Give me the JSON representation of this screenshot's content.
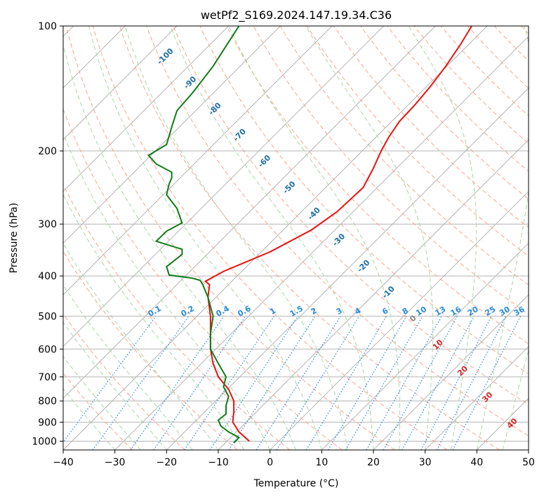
{
  "chart_data": {
    "type": "line",
    "title": "wetPf2_S169.2024.147.19.34.C36",
    "xlabel": "Temperature (°C)",
    "ylabel": "Pressure (hPa)",
    "xlim": [
      -40,
      50
    ],
    "ylim": [
      1050,
      100
    ],
    "y_scale": "log",
    "grid": true,
    "x_ticks": [
      -40,
      -30,
      -20,
      -10,
      0,
      10,
      20,
      30,
      40,
      50
    ],
    "y_ticks": [
      1000,
      900,
      800,
      700,
      600,
      500,
      400,
      300,
      200,
      100
    ],
    "x_tick_labels": [
      "−40",
      "−30",
      "−20",
      "−10",
      "0",
      "10",
      "20",
      "30",
      "40",
      "50"
    ],
    "y_tick_labels": [
      "1000",
      "900",
      "800",
      "700",
      "600",
      "500",
      "400",
      "300",
      "200",
      "100"
    ],
    "series": [
      {
        "color": "#e8130f",
        "points": [
          [
            -4,
            1000
          ],
          [
            -6,
            950
          ],
          [
            -7.2,
            900
          ],
          [
            -7,
            850
          ],
          [
            -7,
            800
          ],
          [
            -8,
            750
          ],
          [
            -10,
            700
          ],
          [
            -11,
            650
          ],
          [
            -11.5,
            600
          ],
          [
            -11.5,
            550
          ],
          [
            -11.5,
            500
          ],
          [
            -12,
            450
          ],
          [
            -11.7,
            420
          ],
          [
            -12.5,
            412
          ],
          [
            -9,
            390
          ],
          [
            0,
            350
          ],
          [
            8,
            310
          ],
          [
            13,
            280
          ],
          [
            18,
            245
          ],
          [
            20,
            220
          ],
          [
            21.5,
            200
          ],
          [
            23,
            185
          ],
          [
            25,
            170
          ],
          [
            28,
            155
          ],
          [
            31,
            140
          ],
          [
            34,
            125
          ],
          [
            37,
            110
          ],
          [
            39,
            100
          ]
        ]
      },
      {
        "color": "#0f7b17",
        "points": [
          [
            -7,
            1010
          ],
          [
            -6,
            980
          ],
          [
            -8,
            950
          ],
          [
            -9.5,
            920
          ],
          [
            -10,
            890
          ],
          [
            -8.5,
            860
          ],
          [
            -8.5,
            820
          ],
          [
            -8,
            780
          ],
          [
            -9,
            740
          ],
          [
            -8.5,
            700
          ],
          [
            -10,
            650
          ],
          [
            -11.5,
            600
          ],
          [
            -11.5,
            550
          ],
          [
            -11,
            500
          ],
          [
            -12,
            450
          ],
          [
            -13,
            420
          ],
          [
            -13.5,
            410
          ],
          [
            -15,
            405
          ],
          [
            -19.5,
            398
          ],
          [
            -20,
            380
          ],
          [
            -17,
            355
          ],
          [
            -17,
            345
          ],
          [
            -22,
            330
          ],
          [
            -20,
            312
          ],
          [
            -17,
            298
          ],
          [
            -18,
            275
          ],
          [
            -20,
            255
          ],
          [
            -19.5,
            240
          ],
          [
            -19,
            232
          ],
          [
            -19,
            225
          ],
          [
            -22,
            215
          ],
          [
            -23.5,
            205
          ],
          [
            -20,
            193
          ],
          [
            -19,
            175
          ],
          [
            -18,
            160
          ],
          [
            -15,
            145
          ],
          [
            -11,
            125
          ],
          [
            -6,
            100
          ]
        ]
      }
    ],
    "dry_adiabat_labels": [
      "-100",
      "-90",
      "-80",
      "-70",
      "-60",
      "-50",
      "-40",
      "-30",
      "-20",
      "-10",
      "0",
      "10",
      "20",
      "30",
      "40"
    ],
    "mixing_ratio_labels": [
      "0.1",
      "0.2",
      "0.4",
      "0.6",
      "1",
      "1.5",
      "2",
      "3",
      "4",
      "6",
      "8",
      "10",
      "13",
      "16",
      "20",
      "25",
      "30",
      "36"
    ],
    "mixing_ratio_values": [
      0.1,
      0.2,
      0.4,
      0.6,
      1,
      1.5,
      2,
      3,
      4,
      6,
      8,
      10,
      13,
      16,
      20,
      25,
      30,
      36
    ]
  },
  "colors": {
    "isotherm": "#b4b4b4",
    "isobar": "#b4b4b4",
    "dry_adiabat": "#f7a68c",
    "moist_adiabat": "#a9d7a4",
    "mixing_ratio": "#2a8bd8",
    "label_neg": "#1f6fa8",
    "label_zero": "#808080",
    "label_pos": "#d62728"
  }
}
